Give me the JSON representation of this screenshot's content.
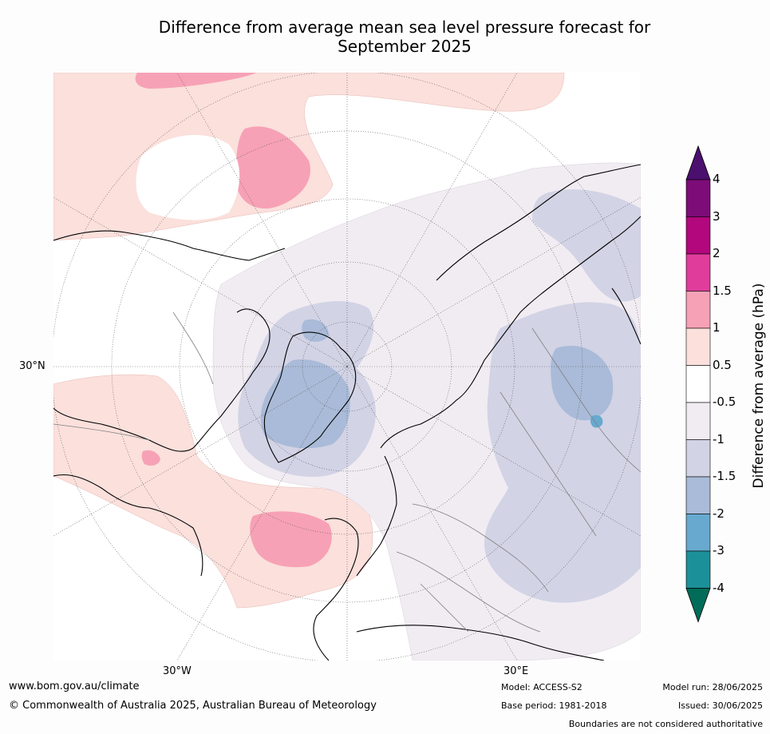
{
  "title": {
    "line1": "Difference from average mean sea level pressure forecast for",
    "line2": "September 2025"
  },
  "map": {
    "projection": "north-polar-stereographic",
    "graticule_labels": {
      "lat_30": "30°N",
      "lon_w": "30°W",
      "lon_e": "30°E"
    },
    "colors": {
      "ocean_neutral": "#ffffff",
      "pos_0_5_1": "#fbe0dc",
      "pos_1_1_5": "#f7a1b6",
      "neg_0_5_1": "#f1ecf2",
      "neg_1_1_5": "#d2d3e5",
      "neg_1_5_2": "#a9bbd8",
      "coast": "#000000",
      "border": "#808080"
    }
  },
  "colorbar": {
    "label": "Difference from average (hPa)",
    "ticks": [
      "4",
      "3",
      "2",
      "1.5",
      "1",
      "0.5",
      "-0.5",
      "-1",
      "-1.5",
      "-2",
      "-3",
      "-4"
    ],
    "bins": [
      {
        "range": "above 4",
        "color": "#4b0f6e"
      },
      {
        "range": "3 to 4",
        "color": "#7d0c79"
      },
      {
        "range": "2 to 3",
        "color": "#b3077d"
      },
      {
        "range": "1.5 to 2",
        "color": "#e03c9c"
      },
      {
        "range": "1 to 1.5",
        "color": "#f7a1b6"
      },
      {
        "range": "0.5 to 1",
        "color": "#fbe0dc"
      },
      {
        "range": "-0.5 to 0.5",
        "color": "#ffffff"
      },
      {
        "range": "-1 to -0.5",
        "color": "#f1ecf2"
      },
      {
        "range": "-1.5 to -1",
        "color": "#d2d3e5"
      },
      {
        "range": "-2 to -1.5",
        "color": "#a9bbd8"
      },
      {
        "range": "-3 to -2",
        "color": "#67a9cf"
      },
      {
        "range": "-4 to -3",
        "color": "#1c9099"
      },
      {
        "range": "below -4",
        "color": "#016c59"
      }
    ]
  },
  "footer": {
    "website": "www.bom.gov.au/climate",
    "copyright": "© Commonwealth of Australia 2025, Australian Bureau of Meteorology",
    "model": "Model: ACCESS-S2",
    "base_period": "Base period: 1981-2018",
    "model_run": "Model run: 28/06/2025",
    "issued": "Issued: 30/06/2025",
    "disclaimer": "Boundaries are not considered authoritative"
  }
}
